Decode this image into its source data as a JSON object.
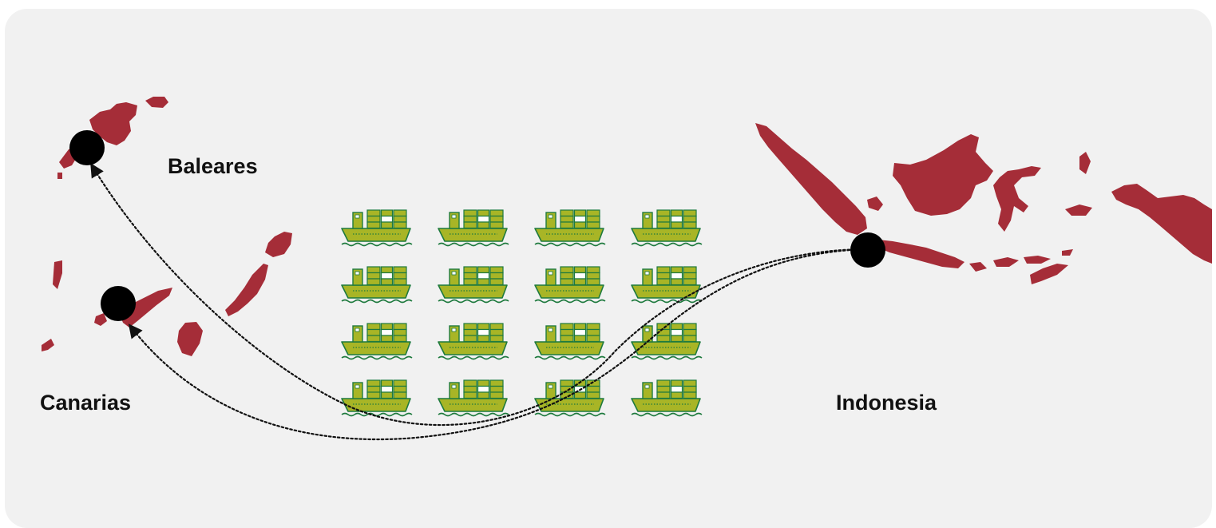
{
  "labels": {
    "baleares": "Baleares",
    "canarias": "Canarias",
    "indonesia": "Indonesia"
  },
  "ships": {
    "rows": 4,
    "columns": 4,
    "count": 16
  },
  "colors": {
    "background": "#f1f1f1",
    "land": "#a52d38",
    "ship_fill": "#a8b526",
    "ship_outline": "#1e7a3e",
    "marker": "#000000",
    "route": "#111111"
  },
  "icons": [
    "ship-icon",
    "location-marker-icon",
    "arrowhead-icon"
  ]
}
